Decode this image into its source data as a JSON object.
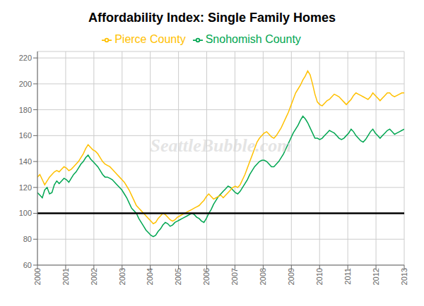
{
  "chart_data": {
    "type": "line",
    "title": "Affordability Index: Single Family Homes",
    "x": [
      2000,
      2000.0855,
      2000.1711,
      2000.2566,
      2000.3421,
      2000.4276,
      2000.5132,
      2000.5987,
      2000.6842,
      2000.7697,
      2000.8553,
      2000.9408,
      2001.0263,
      2001.1118,
      2001.1974,
      2001.2829,
      2001.3684,
      2001.4539,
      2001.5395,
      2001.625,
      2001.7105,
      2001.7961,
      2001.8816,
      2001.9671,
      2002.0526,
      2002.1382,
      2002.2237,
      2002.3092,
      2002.3947,
      2002.4803,
      2002.5658,
      2002.6513,
      2002.7368,
      2002.8224,
      2002.9079,
      2002.9934,
      2003.0789,
      2003.1645,
      2003.25,
      2003.3355,
      2003.4211,
      2003.5066,
      2003.5921,
      2003.6776,
      2003.7632,
      2003.8487,
      2003.9342,
      2004.0197,
      2004.1053,
      2004.1908,
      2004.2763,
      2004.3618,
      2004.4474,
      2004.5329,
      2004.6184,
      2004.7039,
      2004.7895,
      2004.875,
      2004.9605,
      2005.0461,
      2005.1316,
      2005.2171,
      2005.3026,
      2005.3882,
      2005.4737,
      2005.5592,
      2005.6447,
      2005.7303,
      2005.8158,
      2005.9013,
      2005.9868,
      2006.0724,
      2006.1579,
      2006.2434,
      2006.3289,
      2006.4145,
      2006.5,
      2006.5855,
      2006.6711,
      2006.7566,
      2006.8421,
      2006.9276,
      2007.0132,
      2007.0987,
      2007.1842,
      2007.2697,
      2007.3553,
      2007.4408,
      2007.5263,
      2007.6118,
      2007.6974,
      2007.7829,
      2007.8684,
      2007.9539,
      2008.0395,
      2008.125,
      2008.2105,
      2008.2961,
      2008.3816,
      2008.4671,
      2008.5526,
      2008.6382,
      2008.7237,
      2008.8092,
      2008.8947,
      2008.9803,
      2009.0658,
      2009.1513,
      2009.2368,
      2009.3224,
      2009.4079,
      2009.4934,
      2009.5789,
      2009.6645,
      2009.75,
      2009.8355,
      2009.9211,
      2010.0066,
      2010.0921,
      2010.1776,
      2010.2632,
      2010.3487,
      2010.4342,
      2010.5197,
      2010.6053,
      2010.6908,
      2010.7763,
      2010.8618,
      2010.9474,
      2011.0329,
      2011.1184,
      2011.2039,
      2011.2895,
      2011.375,
      2011.4605,
      2011.5461,
      2011.6316,
      2011.7171,
      2011.8026,
      2011.8882,
      2011.9737,
      2012.0592,
      2012.1447,
      2012.2303,
      2012.3158,
      2012.4013,
      2012.4868,
      2012.5724,
      2012.6579,
      2012.7434,
      2012.8289,
      2012.9145,
      2013
    ],
    "series": [
      {
        "name": "Snohomish County",
        "color": "#00a651",
        "values": [
          116,
          114,
          112,
          118,
          120,
          115,
          116,
          122,
          125,
          123,
          125,
          127,
          126,
          124,
          127,
          130,
          132,
          135,
          138,
          140,
          143,
          145,
          142,
          140,
          138,
          136,
          133,
          130,
          128,
          128,
          127,
          126,
          124,
          122,
          120,
          118,
          115,
          112,
          108,
          104,
          102,
          100,
          96,
          93,
          90,
          87,
          85,
          83,
          82,
          83,
          86,
          88,
          91,
          93,
          92,
          90,
          91,
          93,
          94,
          95,
          96,
          97,
          98,
          99,
          100,
          99,
          97,
          96,
          94,
          93,
          96,
          100,
          103,
          107,
          110,
          113,
          115,
          117,
          119,
          121,
          120,
          118,
          116,
          115,
          117,
          120,
          123,
          126,
          130,
          133,
          136,
          138,
          140,
          141,
          141,
          140,
          138,
          136,
          136,
          138,
          140,
          143,
          146,
          150,
          154,
          158,
          162,
          165,
          168,
          172,
          175,
          173,
          170,
          166,
          162,
          158,
          158,
          157,
          158,
          160,
          162,
          164,
          163,
          162,
          160,
          158,
          157,
          158,
          160,
          162,
          165,
          163,
          160,
          158,
          156,
          155,
          157,
          160,
          163,
          165,
          162,
          160,
          158,
          160,
          162,
          164,
          165,
          163,
          161,
          162,
          163,
          164,
          165
        ]
      },
      {
        "name": "Pierce County",
        "color": "#ffc000",
        "values": [
          128,
          130,
          126,
          122,
          125,
          128,
          130,
          132,
          133,
          132,
          134,
          136,
          135,
          133,
          134,
          136,
          138,
          140,
          143,
          146,
          150,
          153,
          151,
          149,
          148,
          146,
          143,
          140,
          138,
          137,
          136,
          134,
          132,
          130,
          128,
          126,
          124,
          121,
          118,
          114,
          110,
          106,
          104,
          102,
          100,
          98,
          96,
          94,
          92,
          93,
          96,
          98,
          100,
          99,
          97,
          95,
          94,
          95,
          97,
          98,
          99,
          100,
          101,
          102,
          103,
          104,
          105,
          106,
          108,
          110,
          113,
          115,
          113,
          111,
          112,
          113,
          114,
          112,
          114,
          116,
          118,
          120,
          121,
          120,
          122,
          126,
          130,
          135,
          140,
          145,
          150,
          155,
          158,
          160,
          162,
          163,
          161,
          159,
          158,
          160,
          163,
          166,
          170,
          174,
          178,
          183,
          188,
          193,
          196,
          199,
          203,
          206,
          210,
          207,
          200,
          192,
          186,
          184,
          183,
          185,
          187,
          188,
          190,
          192,
          191,
          190,
          188,
          186,
          184,
          186,
          188,
          191,
          193,
          192,
          191,
          190,
          189,
          188,
          190,
          193,
          191,
          189,
          187,
          189,
          191,
          193,
          193,
          191,
          190,
          191,
          192,
          193,
          193
        ]
      }
    ],
    "xlim": [
      2000,
      2013
    ],
    "xticks": [
      2000,
      2001,
      2002,
      2003,
      2004,
      2005,
      2006,
      2007,
      2008,
      2009,
      2010,
      2011,
      2012,
      2013
    ],
    "ylim": [
      60,
      225
    ],
    "yticks": [
      60,
      80,
      100,
      120,
      140,
      160,
      180,
      200,
      220
    ],
    "reference_line": 100,
    "annotations": [
      "SeattleBubble.com"
    ],
    "grid": true,
    "legend": "top"
  }
}
